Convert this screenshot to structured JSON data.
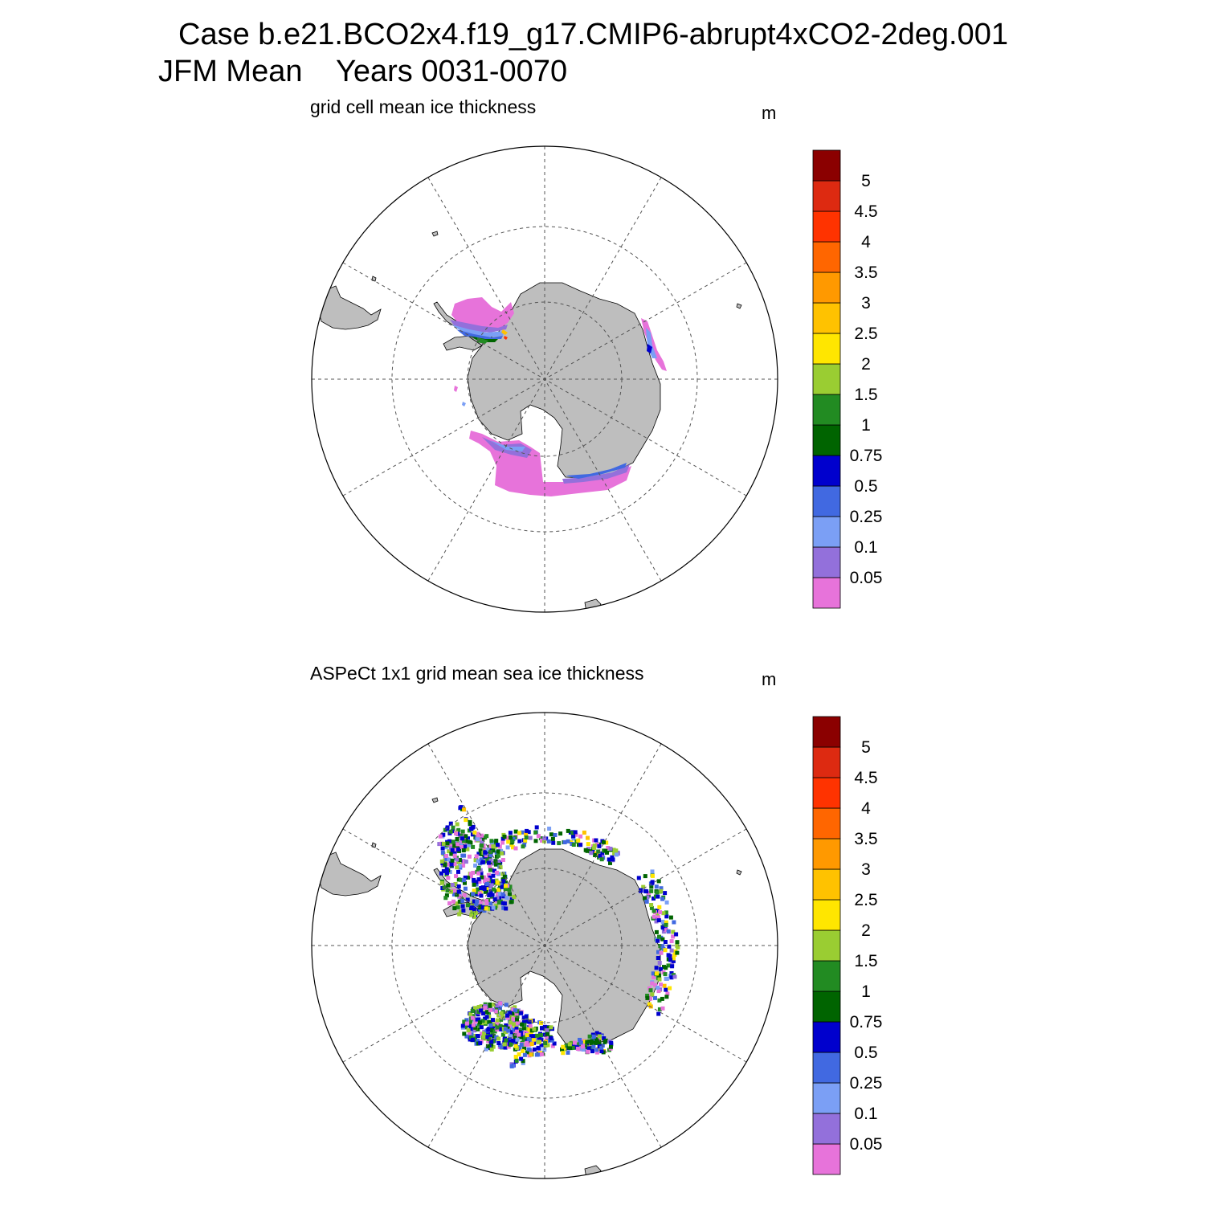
{
  "header": {
    "title_line1": "Case b.e21.BCO2x4.f19_g17.CMIP6-abrupt4xCO2-2deg.001",
    "title_line2": "JFM Mean    Years 0031-0070"
  },
  "panels": [
    {
      "subtitle": "grid cell mean ice thickness",
      "unit": "m"
    },
    {
      "subtitle": "ASPeCt 1x1 grid mean sea ice thickness",
      "unit": "m"
    }
  ],
  "colorbar": {
    "levels": [
      "0.05",
      "0.1",
      "0.25",
      "0.5",
      "0.75",
      "1",
      "1.5",
      "2",
      "2.5",
      "3",
      "3.5",
      "4",
      "4.5",
      "5"
    ],
    "colors": [
      "#e773da",
      "#9370db",
      "#7b9ff5",
      "#4169e1",
      "#0000cd",
      "#006400",
      "#228b22",
      "#9acd32",
      "#ffe600",
      "#ffc200",
      "#ff9900",
      "#ff6600",
      "#ff3300",
      "#dd2a11",
      "#8b0000"
    ]
  },
  "map_colors": {
    "land": "#bebebe",
    "ocean": "#ffffff",
    "grid": "#555555"
  }
}
